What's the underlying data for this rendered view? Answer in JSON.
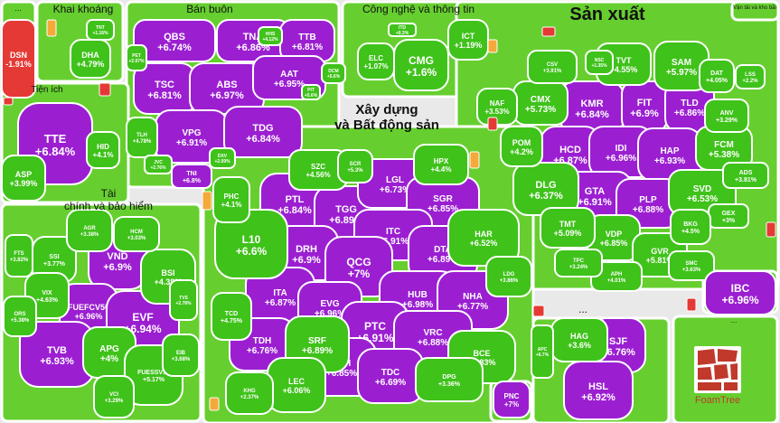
{
  "colors": {
    "up_strong": "#9b1fd1",
    "up": "#3fc21a",
    "up_light": "#66cf2f",
    "down": "#e53935",
    "flat": "#f4a93a",
    "border": "#ffffff",
    "bg": "#e9e9e9"
  },
  "logo_text": "FoamTree",
  "chart_data": {
    "type": "treemap",
    "groups": [
      {
        "name": "...",
        "tiles": [
          {
            "ticker": "DSN",
            "change": "-1.91%"
          }
        ]
      },
      {
        "name": "Khai khoáng",
        "tiles": [
          {
            "ticker": "DHA",
            "change": "+4.79%"
          },
          {
            "ticker": "TNT",
            "change": "+1.16%"
          }
        ]
      },
      {
        "name": "Bán buôn",
        "tiles": [
          {
            "ticker": "QBS",
            "change": "+6.74%"
          },
          {
            "ticker": "TNA",
            "change": "+6.86%"
          },
          {
            "ticker": "TTB",
            "change": "+6.81%"
          },
          {
            "ticker": "TSC",
            "change": "+6.81%"
          },
          {
            "ticker": "ABS",
            "change": "+6.97%"
          },
          {
            "ticker": "AAT",
            "change": "+6.95%"
          },
          {
            "ticker": "VPG",
            "change": "+6.91%"
          },
          {
            "ticker": "TDG",
            "change": "+6.84%"
          },
          {
            "ticker": "TNI",
            "change": "+6.8%"
          },
          {
            "ticker": "TLH",
            "change": "+4.78%"
          },
          {
            "ticker": "HHS",
            "change": "+4.12%"
          },
          {
            "ticker": "PET",
            "change": "+2.07%"
          },
          {
            "ticker": "JVC",
            "change": "+2.76%"
          },
          {
            "ticker": "DXV",
            "change": "+2.09%"
          },
          {
            "ticker": "PIT",
            "change": "+5.6%"
          },
          {
            "ticker": "DCM",
            "change": "+5.6%"
          }
        ]
      },
      {
        "name": "Công nghệ và thông tin",
        "tiles": [
          {
            "ticker": "CMG",
            "change": "+1.6%"
          },
          {
            "ticker": "ELC",
            "change": "+1.07%"
          },
          {
            "ticker": "ICT",
            "change": "+1.19%"
          },
          {
            "ticker": "ITD",
            "change": "+0.3%"
          }
        ]
      },
      {
        "name": "Sản xuất",
        "tiles": [
          {
            "ticker": "KMR",
            "change": "+6.84%"
          },
          {
            "ticker": "FIT",
            "change": "+6.9%"
          },
          {
            "ticker": "TLD",
            "change": "+6.86%"
          },
          {
            "ticker": "HCD",
            "change": "+6.87%"
          },
          {
            "ticker": "IDI",
            "change": "+6.96%"
          },
          {
            "ticker": "HAP",
            "change": "+6.93%"
          },
          {
            "ticker": "GTA",
            "change": "+6.91%"
          },
          {
            "ticker": "PLP",
            "change": "+6.88%"
          },
          {
            "ticker": "SAM",
            "change": "+5.97%"
          },
          {
            "ticker": "TVT",
            "change": "+4.55%"
          },
          {
            "ticker": "CMX",
            "change": "+5.73%"
          },
          {
            "ticker": "FCM",
            "change": "+5.38%"
          },
          {
            "ticker": "DLG",
            "change": "+6.37%"
          },
          {
            "ticker": "SVD",
            "change": "+6.53%"
          },
          {
            "ticker": "VDP",
            "change": "+6.85%"
          },
          {
            "ticker": "GVR",
            "change": "+5.81%"
          },
          {
            "ticker": "TMT",
            "change": "+5.09%"
          },
          {
            "ticker": "POM",
            "change": "+4.2%"
          },
          {
            "ticker": "NAF",
            "change": "+3.53%"
          },
          {
            "ticker": "DAT",
            "change": "+4.05%"
          },
          {
            "ticker": "CSV",
            "change": "+3.91%"
          },
          {
            "ticker": "ADS",
            "change": "+3.81%"
          },
          {
            "ticker": "GEX",
            "change": "+3%"
          },
          {
            "ticker": "BKG",
            "change": "+4.5%"
          },
          {
            "ticker": "APH",
            "change": "+4.01%"
          },
          {
            "ticker": "TPC",
            "change": "+3.24%"
          },
          {
            "ticker": "SMC",
            "change": "+3.63%"
          },
          {
            "ticker": "ANV",
            "change": "+3.29%"
          },
          {
            "ticker": "NSC",
            "change": "+1.35%"
          },
          {
            "ticker": "LSS",
            "change": "+2.2%"
          }
        ]
      },
      {
        "name": "Tiện ích",
        "tiles": [
          {
            "ticker": "TTE",
            "change": "+6.84%"
          },
          {
            "ticker": "ASP",
            "change": "+3.99%"
          },
          {
            "ticker": "HID",
            "change": "+4.1%"
          }
        ]
      },
      {
        "name": "Xây dựng\nvà Bất động sản",
        "tiles": [
          {
            "ticker": "PTL",
            "change": "+6.84%"
          },
          {
            "ticker": "TGG",
            "change": "+6.89%"
          },
          {
            "ticker": "LGL",
            "change": "+6.73%"
          },
          {
            "ticker": "SGR",
            "change": "+6.85%"
          },
          {
            "ticker": "DRH",
            "change": "+6.9%"
          },
          {
            "ticker": "ITC",
            "change": "+6.91%"
          },
          {
            "ticker": "QCG",
            "change": "+7%"
          },
          {
            "ticker": "DTA",
            "change": "+6.89%"
          },
          {
            "ticker": "ITA",
            "change": "+6.87%"
          },
          {
            "ticker": "EVG",
            "change": "+6.96%"
          },
          {
            "ticker": "HUB",
            "change": "+6.98%"
          },
          {
            "ticker": "NHA",
            "change": "+6.77%"
          },
          {
            "ticker": "TDH",
            "change": "+6.76%"
          },
          {
            "ticker": "PTC",
            "change": "+6.91%"
          },
          {
            "ticker": "VRC",
            "change": "+6.88%"
          },
          {
            "ticker": "VPH",
            "change": "+6.85%"
          },
          {
            "ticker": "TDC",
            "change": "+6.69%"
          },
          {
            "ticker": "L10",
            "change": "+6.6%"
          },
          {
            "ticker": "PHC",
            "change": "+4.1%"
          },
          {
            "ticker": "HPX",
            "change": "+4.4%"
          },
          {
            "ticker": "HAR",
            "change": "+6.52%"
          },
          {
            "ticker": "SRF",
            "change": "+6.89%"
          },
          {
            "ticker": "LEC",
            "change": "+6.06%"
          },
          {
            "ticker": "BCE",
            "change": "+4.83%"
          },
          {
            "ticker": "SZC",
            "change": "+4.56%"
          },
          {
            "ticker": "SCR",
            "change": "+5.3%"
          },
          {
            "ticker": "TCD",
            "change": "+4.75%"
          },
          {
            "ticker": "DPG",
            "change": "+3.36%"
          },
          {
            "ticker": "LDG",
            "change": "+3.86%"
          },
          {
            "ticker": "KHG",
            "change": "+2.37%"
          }
        ]
      },
      {
        "name": "Tài\nchính và bảo hiểm",
        "tiles": [
          {
            "ticker": "VND",
            "change": "+6.9%"
          },
          {
            "ticker": "FUEFCV50",
            "change": "+6.96%"
          },
          {
            "ticker": "EVF",
            "change": "+6.94%"
          },
          {
            "ticker": "TVB",
            "change": "+6.93%"
          },
          {
            "ticker": "BSI",
            "change": "+4.38%"
          },
          {
            "ticker": "APG",
            "change": "+4%"
          },
          {
            "ticker": "SSI",
            "change": "+3.77%"
          },
          {
            "ticker": "VIX",
            "change": "+4.63%"
          },
          {
            "ticker": "FUESSV50",
            "change": "+5.17%"
          },
          {
            "ticker": "AGR",
            "change": "+3.38%"
          },
          {
            "ticker": "HCM",
            "change": "+3.03%"
          },
          {
            "ticker": "FTS",
            "change": "+3.82%"
          },
          {
            "ticker": "ORS",
            "change": "+5.38%"
          },
          {
            "ticker": "EIB",
            "change": "+3.68%"
          },
          {
            "ticker": "VCI",
            "change": "+3.29%"
          },
          {
            "ticker": "TVS",
            "change": "+2.78%"
          }
        ]
      },
      {
        "name": "...",
        "tiles": [
          {
            "ticker": "SJF",
            "change": "+6.76%"
          },
          {
            "ticker": "HSL",
            "change": "+6.92%"
          },
          {
            "ticker": "HAG",
            "change": "+3.6%"
          },
          {
            "ticker": "APC",
            "change": "+6.7%"
          }
        ]
      },
      {
        "name": "",
        "tiles": [
          {
            "ticker": "PNC",
            "change": "+7%"
          }
        ]
      },
      {
        "name": "",
        "tiles": [
          {
            "ticker": "IBC",
            "change": "+6.96%"
          }
        ]
      },
      {
        "name": "Vận tải và kho bãi",
        "tiles": []
      },
      {
        "name": "...",
        "tiles": []
      }
    ]
  }
}
